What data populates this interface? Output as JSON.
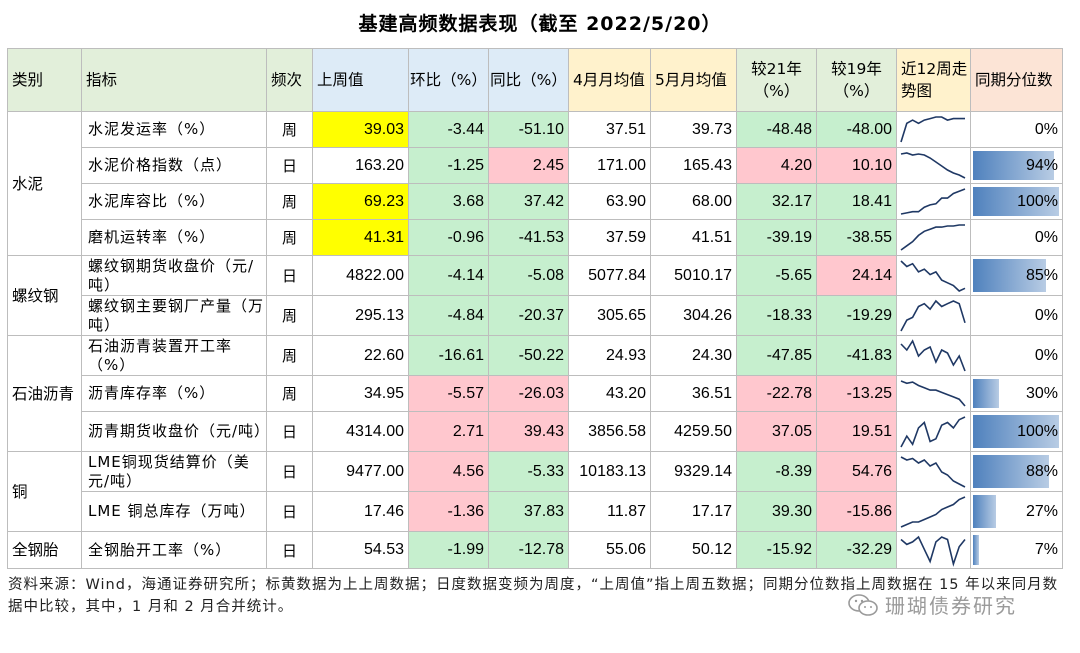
{
  "title": "基建高频数据表现（截至 2022/5/20）",
  "headers": {
    "category": "类别",
    "indicator": "指标",
    "frequency": "频次",
    "last_week": "上周值",
    "mom": "环比（%）",
    "yoy": "同比（%）",
    "apr_avg": "4月月均值",
    "may_avg": "5月月均值",
    "vs21": "较21年（%）",
    "vs19": "较19年（%）",
    "trend": "近12周走势图",
    "percentile": "同期分位数"
  },
  "rows": [
    {
      "category": "水泥",
      "indicator": "水泥发运率（%）",
      "freq": "周",
      "last": "39.03",
      "mom": "-3.44",
      "yoy": "-51.10",
      "apr": "37.51",
      "may": "39.73",
      "v21": "-48.48",
      "v19": "-48.00",
      "pct": "0%",
      "pct_value": 0,
      "spark": [
        18,
        6,
        4,
        6,
        4,
        3,
        2,
        2,
        4,
        3,
        3,
        3
      ]
    },
    {
      "category": "水泥",
      "indicator": "水泥价格指数（点）",
      "freq": "日",
      "last": "163.20",
      "mom": "-1.25",
      "yoy": "2.45",
      "apr": "171.00",
      "may": "165.43",
      "v21": "4.20",
      "v19": "10.10",
      "pct": "94%",
      "pct_value": 94,
      "spark": [
        4,
        3,
        5,
        4,
        5,
        8,
        12,
        16,
        20,
        23,
        25,
        28
      ]
    },
    {
      "category": "水泥",
      "indicator": "水泥库容比（%）",
      "freq": "周",
      "last": "69.23",
      "mom": "3.68",
      "yoy": "37.42",
      "apr": "63.90",
      "may": "68.00",
      "v21": "32.17",
      "v19": "18.41",
      "pct": "100%",
      "pct_value": 100,
      "spark": [
        26,
        25,
        24,
        24,
        20,
        18,
        17,
        12,
        12,
        8,
        6,
        4
      ]
    },
    {
      "category": "水泥",
      "indicator": "磨机运转率（%）",
      "freq": "周",
      "last": "41.31",
      "mom": "-0.96",
      "yoy": "-41.53",
      "apr": "37.59",
      "may": "41.51",
      "v21": "-39.19",
      "v19": "-38.55",
      "pct": "0%",
      "pct_value": 0,
      "spark": [
        28,
        24,
        20,
        14,
        10,
        8,
        6,
        6,
        5,
        5,
        4,
        4
      ]
    },
    {
      "category": "螺纹钢",
      "indicator": "螺纹钢期货收盘价（元/吨）",
      "freq": "日",
      "last": "4822.00",
      "mom": "-4.14",
      "yoy": "-5.08",
      "apr": "5077.84",
      "may": "5010.17",
      "v21": "-5.65",
      "v19": "24.14",
      "pct": "85%",
      "pct_value": 85,
      "spark": [
        4,
        8,
        6,
        12,
        10,
        14,
        12,
        18,
        20,
        22,
        26,
        24
      ]
    },
    {
      "category": "螺纹钢",
      "indicator": "螺纹钢主要钢厂产量（万吨）",
      "freq": "周",
      "last": "295.13",
      "mom": "-4.84",
      "yoy": "-20.37",
      "apr": "305.65",
      "may": "304.26",
      "v21": "-18.33",
      "v19": "-19.29",
      "pct": "0%",
      "pct_value": 0,
      "spark": [
        28,
        20,
        18,
        10,
        8,
        12,
        6,
        10,
        8,
        6,
        8,
        22
      ]
    },
    {
      "category": "石油沥青",
      "indicator": "石油沥青装置开工率（%）",
      "freq": "周",
      "last": "22.60",
      "mom": "-16.61",
      "yoy": "-50.22",
      "apr": "24.93",
      "may": "24.30",
      "v21": "-47.85",
      "v19": "-41.83",
      "pct": "0%",
      "pct_value": 0,
      "spark": [
        6,
        10,
        4,
        14,
        10,
        8,
        18,
        10,
        12,
        20,
        14,
        24
      ]
    },
    {
      "category": "石油沥青",
      "indicator": "沥青库存率（%）",
      "freq": "周",
      "last": "34.95",
      "mom": "-5.57",
      "yoy": "-26.03",
      "apr": "43.20",
      "may": "36.51",
      "v21": "-22.78",
      "v19": "-13.25",
      "pct": "30%",
      "pct_value": 30,
      "spark": [
        4,
        6,
        5,
        8,
        10,
        12,
        12,
        14,
        16,
        18,
        20,
        26
      ]
    },
    {
      "category": "石油沥青",
      "indicator": "沥青期货收盘价（元/吨）",
      "freq": "日",
      "last": "4314.00",
      "mom": "2.71",
      "yoy": "39.43",
      "apr": "3856.58",
      "may": "4259.50",
      "v21": "37.05",
      "v19": "19.51",
      "pct": "100%",
      "pct_value": 100,
      "spark": [
        24,
        16,
        22,
        10,
        6,
        20,
        18,
        8,
        6,
        10,
        4,
        2
      ]
    },
    {
      "category": "铜",
      "indicator": "LME铜现货结算价（美元/吨）",
      "freq": "日",
      "last": "9477.00",
      "mom": "4.56",
      "yoy": "-5.33",
      "apr": "10183.13",
      "may": "9329.14",
      "v21": "-8.39",
      "v19": "54.76",
      "pct": "88%",
      "pct_value": 88,
      "spark": [
        4,
        6,
        5,
        8,
        6,
        10,
        8,
        14,
        16,
        20,
        22,
        24
      ]
    },
    {
      "category": "铜",
      "indicator": "LME 铜总库存（万吨）",
      "freq": "日",
      "last": "17.46",
      "mom": "-1.36",
      "yoy": "37.83",
      "apr": "11.87",
      "may": "17.17",
      "v21": "39.30",
      "v19": "-15.86",
      "pct": "27%",
      "pct_value": 27,
      "spark": [
        28,
        26,
        24,
        24,
        22,
        20,
        18,
        14,
        12,
        10,
        6,
        4
      ]
    },
    {
      "category": "全钢胎",
      "indicator": "全钢胎开工率（%）",
      "freq": "日",
      "last": "54.53",
      "mom": "-1.99",
      "yoy": "-12.78",
      "apr": "55.06",
      "may": "50.12",
      "v21": "-15.92",
      "v19": "-32.29",
      "pct": "7%",
      "pct_value": 7,
      "spark": [
        6,
        10,
        8,
        4,
        14,
        24,
        8,
        4,
        6,
        26,
        12,
        6
      ]
    }
  ],
  "colors": {
    "yellow": "#ffff00",
    "green": "#c6efce",
    "pink": "#ffc7ce",
    "bar": "#4f81bd"
  },
  "note": "资料来源：Wind，海通证券研究所；标黄数据为上上周数据；日度数据变频为周度，“上周值”指上周五数据；同期分位数指上周数据在 15 年以来同月数据中比较，其中，1 月和 2 月合并统计。",
  "watermark": "珊瑚债券研究"
}
